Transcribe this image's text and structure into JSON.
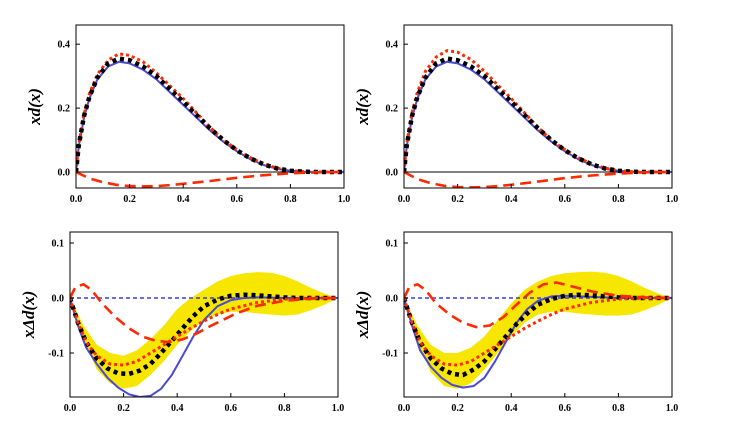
{
  "chart_data": [
    {
      "type": "line",
      "ylabel": "xd(x)",
      "xlim": [
        0,
        1
      ],
      "ylim": [
        -0.05,
        0.46
      ],
      "xticks": [
        "0.0",
        "0.2",
        "0.4",
        "0.6",
        "0.8",
        "1.0"
      ],
      "yticks": [
        "0.0",
        "0.2",
        "0.4"
      ],
      "zero_line": "solid",
      "series": [
        {
          "style": "solid",
          "color": "#4a4ad4",
          "x": [
            0.0,
            0.01,
            0.03,
            0.05,
            0.08,
            0.12,
            0.16,
            0.2,
            0.25,
            0.3,
            0.35,
            0.4,
            0.45,
            0.5,
            0.55,
            0.6,
            0.65,
            0.7,
            0.75,
            0.8,
            0.85,
            0.9,
            0.95,
            1.0
          ],
          "y": [
            0.0,
            0.08,
            0.17,
            0.23,
            0.29,
            0.33,
            0.345,
            0.34,
            0.32,
            0.29,
            0.25,
            0.21,
            0.17,
            0.13,
            0.095,
            0.065,
            0.04,
            0.022,
            0.01,
            0.004,
            0.001,
            0.0,
            0.0,
            0.0
          ]
        },
        {
          "style": "dotted",
          "color": "#ff2a00",
          "x": [
            0.0,
            0.01,
            0.03,
            0.05,
            0.08,
            0.12,
            0.16,
            0.2,
            0.25,
            0.3,
            0.35,
            0.4,
            0.45,
            0.5,
            0.55,
            0.6,
            0.65,
            0.7,
            0.75,
            0.8,
            0.85,
            0.9,
            0.95,
            1.0
          ],
          "y": [
            0.0,
            0.085,
            0.18,
            0.245,
            0.305,
            0.35,
            0.37,
            0.365,
            0.345,
            0.31,
            0.27,
            0.23,
            0.185,
            0.14,
            0.1,
            0.07,
            0.045,
            0.025,
            0.012,
            0.005,
            0.001,
            0.0,
            0.0,
            0.0
          ]
        },
        {
          "style": "squares",
          "color": "#000000",
          "x": [
            0.0,
            0.01,
            0.03,
            0.05,
            0.08,
            0.12,
            0.16,
            0.2,
            0.25,
            0.3,
            0.35,
            0.4,
            0.45,
            0.5,
            0.55,
            0.6,
            0.65,
            0.7,
            0.75,
            0.8,
            0.85,
            0.9,
            0.95,
            1.0
          ],
          "y": [
            0.0,
            0.082,
            0.175,
            0.235,
            0.295,
            0.34,
            0.355,
            0.35,
            0.33,
            0.3,
            0.26,
            0.22,
            0.178,
            0.137,
            0.1,
            0.068,
            0.043,
            0.024,
            0.011,
            0.004,
            0.001,
            0.0,
            0.0,
            0.0
          ]
        },
        {
          "style": "dashed",
          "color": "#ff2a00",
          "x": [
            0.0,
            0.05,
            0.1,
            0.15,
            0.2,
            0.25,
            0.3,
            0.35,
            0.4,
            0.5,
            0.6,
            0.7,
            0.8,
            0.9,
            1.0
          ],
          "y": [
            0.0,
            -0.02,
            -0.032,
            -0.04,
            -0.044,
            -0.045,
            -0.044,
            -0.041,
            -0.037,
            -0.028,
            -0.018,
            -0.01,
            -0.004,
            -0.001,
            0.0
          ]
        }
      ]
    },
    {
      "type": "line",
      "ylabel": "xd(x)",
      "xlim": [
        0,
        1
      ],
      "ylim": [
        -0.05,
        0.46
      ],
      "xticks": [
        "0.0",
        "0.2",
        "0.4",
        "0.6",
        "0.8",
        "1.0"
      ],
      "yticks": [
        "0.0",
        "0.2",
        "0.4"
      ],
      "zero_line": "solid",
      "series": [
        {
          "style": "solid",
          "color": "#4a4ad4",
          "x": [
            0.0,
            0.01,
            0.03,
            0.05,
            0.08,
            0.12,
            0.16,
            0.2,
            0.25,
            0.3,
            0.35,
            0.4,
            0.45,
            0.5,
            0.55,
            0.6,
            0.65,
            0.7,
            0.75,
            0.8,
            0.85,
            0.9,
            0.95,
            1.0
          ],
          "y": [
            0.0,
            0.08,
            0.17,
            0.23,
            0.29,
            0.33,
            0.345,
            0.34,
            0.32,
            0.29,
            0.25,
            0.21,
            0.17,
            0.13,
            0.095,
            0.065,
            0.04,
            0.022,
            0.01,
            0.004,
            0.001,
            0.0,
            0.0,
            0.0
          ]
        },
        {
          "style": "dotted",
          "color": "#ff2a00",
          "x": [
            0.0,
            0.01,
            0.03,
            0.05,
            0.08,
            0.12,
            0.16,
            0.2,
            0.25,
            0.3,
            0.35,
            0.4,
            0.45,
            0.5,
            0.55,
            0.6,
            0.65,
            0.7,
            0.75,
            0.8,
            0.85,
            0.9,
            0.95,
            1.0
          ],
          "y": [
            0.0,
            0.088,
            0.185,
            0.25,
            0.315,
            0.36,
            0.38,
            0.375,
            0.352,
            0.315,
            0.272,
            0.23,
            0.185,
            0.14,
            0.1,
            0.07,
            0.045,
            0.025,
            0.012,
            0.005,
            0.001,
            0.0,
            0.0,
            0.0
          ]
        },
        {
          "style": "squares",
          "color": "#000000",
          "x": [
            0.0,
            0.01,
            0.03,
            0.05,
            0.08,
            0.12,
            0.16,
            0.2,
            0.25,
            0.3,
            0.35,
            0.4,
            0.45,
            0.5,
            0.55,
            0.6,
            0.65,
            0.7,
            0.75,
            0.8,
            0.85,
            0.9,
            0.95,
            1.0
          ],
          "y": [
            0.0,
            0.082,
            0.175,
            0.235,
            0.295,
            0.34,
            0.355,
            0.35,
            0.33,
            0.3,
            0.26,
            0.22,
            0.178,
            0.137,
            0.1,
            0.068,
            0.043,
            0.024,
            0.011,
            0.004,
            0.001,
            0.0,
            0.0,
            0.0
          ]
        },
        {
          "style": "dashed",
          "color": "#ff2a00",
          "x": [
            0.0,
            0.05,
            0.1,
            0.15,
            0.2,
            0.25,
            0.3,
            0.35,
            0.4,
            0.5,
            0.6,
            0.7,
            0.8,
            0.9,
            1.0
          ],
          "y": [
            0.0,
            -0.022,
            -0.035,
            -0.043,
            -0.047,
            -0.048,
            -0.047,
            -0.044,
            -0.04,
            -0.03,
            -0.019,
            -0.011,
            -0.005,
            -0.001,
            0.0
          ]
        }
      ]
    },
    {
      "type": "line",
      "ylabel": "xΔd(x)",
      "xlim": [
        0,
        1
      ],
      "ylim": [
        -0.18,
        0.12
      ],
      "xticks": [
        "0.0",
        "0.2",
        "0.4",
        "0.6",
        "0.8",
        "1.0"
      ],
      "yticks": [
        "0.1",
        "0.0",
        "-0.1"
      ],
      "zero_line": "dashed",
      "band": {
        "color": "#f7e600",
        "x": [
          0.0,
          0.05,
          0.1,
          0.15,
          0.2,
          0.25,
          0.3,
          0.35,
          0.4,
          0.45,
          0.5,
          0.55,
          0.6,
          0.65,
          0.7,
          0.75,
          0.8,
          0.85,
          0.9,
          0.95,
          1.0
        ],
        "lower": [
          -0.005,
          -0.075,
          -0.13,
          -0.155,
          -0.165,
          -0.16,
          -0.14,
          -0.115,
          -0.085,
          -0.06,
          -0.04,
          -0.03,
          -0.025,
          -0.025,
          -0.028,
          -0.03,
          -0.032,
          -0.03,
          -0.022,
          -0.012,
          0.0
        ],
        "upper": [
          0.0,
          -0.05,
          -0.085,
          -0.1,
          -0.105,
          -0.095,
          -0.075,
          -0.05,
          -0.02,
          0.0,
          0.015,
          0.03,
          0.04,
          0.045,
          0.047,
          0.046,
          0.04,
          0.03,
          0.018,
          0.008,
          0.0
        ]
      },
      "series": [
        {
          "style": "solid",
          "color": "#4a4ad4",
          "x": [
            0.0,
            0.03,
            0.06,
            0.1,
            0.14,
            0.18,
            0.22,
            0.26,
            0.3,
            0.34,
            0.38,
            0.42,
            0.46,
            0.5,
            0.55,
            0.6,
            0.65,
            0.7,
            0.8,
            0.9,
            1.0
          ],
          "y": [
            0.0,
            -0.05,
            -0.09,
            -0.12,
            -0.145,
            -0.163,
            -0.175,
            -0.18,
            -0.178,
            -0.165,
            -0.14,
            -0.105,
            -0.07,
            -0.04,
            -0.015,
            -0.004,
            0.0,
            0.001,
            0.0,
            0.0,
            0.0
          ]
        },
        {
          "style": "squares",
          "color": "#000000",
          "x": [
            0.0,
            0.03,
            0.06,
            0.1,
            0.14,
            0.18,
            0.22,
            0.26,
            0.3,
            0.34,
            0.38,
            0.42,
            0.46,
            0.5,
            0.55,
            0.6,
            0.65,
            0.7,
            0.75,
            0.8,
            0.85,
            0.9,
            0.95,
            1.0
          ],
          "y": [
            0.0,
            -0.045,
            -0.08,
            -0.11,
            -0.128,
            -0.137,
            -0.138,
            -0.132,
            -0.12,
            -0.1,
            -0.078,
            -0.055,
            -0.033,
            -0.015,
            -0.003,
            0.004,
            0.006,
            0.005,
            0.003,
            0.001,
            0.0,
            0.0,
            0.0,
            0.0
          ]
        },
        {
          "style": "dotted",
          "color": "#ff2a00",
          "x": [
            0.0,
            0.03,
            0.06,
            0.1,
            0.15,
            0.2,
            0.25,
            0.3,
            0.35,
            0.4,
            0.45,
            0.5,
            0.55,
            0.6,
            0.7,
            0.8,
            0.9,
            1.0
          ],
          "y": [
            0.0,
            -0.045,
            -0.08,
            -0.105,
            -0.12,
            -0.122,
            -0.115,
            -0.1,
            -0.085,
            -0.07,
            -0.055,
            -0.042,
            -0.03,
            -0.02,
            -0.008,
            -0.002,
            0.0,
            0.0
          ]
        },
        {
          "style": "dashed",
          "color": "#ff2a00",
          "x": [
            0.0,
            0.02,
            0.05,
            0.08,
            0.12,
            0.17,
            0.22,
            0.27,
            0.32,
            0.37,
            0.42,
            0.47,
            0.52,
            0.57,
            0.62,
            0.7,
            0.8,
            0.9,
            1.0
          ],
          "y": [
            0.0,
            0.02,
            0.025,
            0.015,
            -0.01,
            -0.035,
            -0.055,
            -0.07,
            -0.078,
            -0.08,
            -0.075,
            -0.065,
            -0.052,
            -0.04,
            -0.028,
            -0.014,
            -0.005,
            -0.001,
            0.0
          ]
        }
      ]
    },
    {
      "type": "line",
      "ylabel": "xΔd(x)",
      "xlim": [
        0,
        1
      ],
      "ylim": [
        -0.18,
        0.12
      ],
      "xticks": [
        "0.0",
        "0.2",
        "0.4",
        "0.6",
        "0.8",
        "1.0"
      ],
      "yticks": [
        "0.1",
        "0.0",
        "-0.1"
      ],
      "zero_line": "dashed",
      "band": {
        "color": "#f7e600",
        "x": [
          0.0,
          0.05,
          0.1,
          0.15,
          0.2,
          0.25,
          0.3,
          0.35,
          0.4,
          0.45,
          0.5,
          0.55,
          0.6,
          0.65,
          0.7,
          0.75,
          0.8,
          0.85,
          0.9,
          0.95,
          1.0
        ],
        "lower": [
          -0.005,
          -0.08,
          -0.135,
          -0.16,
          -0.165,
          -0.155,
          -0.13,
          -0.1,
          -0.07,
          -0.045,
          -0.03,
          -0.025,
          -0.025,
          -0.028,
          -0.03,
          -0.032,
          -0.032,
          -0.03,
          -0.022,
          -0.012,
          0.0
        ],
        "upper": [
          0.0,
          -0.05,
          -0.085,
          -0.1,
          -0.1,
          -0.09,
          -0.07,
          -0.04,
          -0.01,
          0.015,
          0.03,
          0.04,
          0.045,
          0.047,
          0.048,
          0.046,
          0.04,
          0.03,
          0.018,
          0.008,
          0.0
        ]
      },
      "series": [
        {
          "style": "solid",
          "color": "#4a4ad4",
          "x": [
            0.0,
            0.03,
            0.06,
            0.1,
            0.14,
            0.18,
            0.22,
            0.26,
            0.3,
            0.34,
            0.38,
            0.42,
            0.46,
            0.5,
            0.55,
            0.6,
            0.65,
            0.7,
            0.8,
            0.9,
            1.0
          ],
          "y": [
            0.0,
            -0.05,
            -0.095,
            -0.125,
            -0.145,
            -0.158,
            -0.163,
            -0.16,
            -0.145,
            -0.115,
            -0.08,
            -0.045,
            -0.02,
            -0.005,
            0.003,
            0.004,
            0.003,
            0.002,
            0.0,
            0.0,
            0.0
          ]
        },
        {
          "style": "squares",
          "color": "#000000",
          "x": [
            0.0,
            0.03,
            0.06,
            0.1,
            0.14,
            0.18,
            0.22,
            0.26,
            0.3,
            0.34,
            0.38,
            0.42,
            0.46,
            0.5,
            0.55,
            0.6,
            0.65,
            0.7,
            0.75,
            0.8,
            0.85,
            0.9,
            0.95,
            1.0
          ],
          "y": [
            0.0,
            -0.045,
            -0.08,
            -0.11,
            -0.128,
            -0.138,
            -0.14,
            -0.13,
            -0.115,
            -0.093,
            -0.07,
            -0.047,
            -0.028,
            -0.012,
            -0.002,
            0.004,
            0.006,
            0.005,
            0.003,
            0.001,
            0.0,
            0.0,
            0.0,
            0.0
          ]
        },
        {
          "style": "dotted",
          "color": "#ff2a00",
          "x": [
            0.0,
            0.03,
            0.06,
            0.1,
            0.15,
            0.2,
            0.25,
            0.3,
            0.35,
            0.4,
            0.45,
            0.5,
            0.55,
            0.6,
            0.7,
            0.8,
            0.9,
            1.0
          ],
          "y": [
            0.0,
            -0.045,
            -0.08,
            -0.105,
            -0.12,
            -0.122,
            -0.115,
            -0.1,
            -0.085,
            -0.07,
            -0.055,
            -0.042,
            -0.03,
            -0.02,
            -0.008,
            -0.002,
            0.0,
            0.0
          ]
        },
        {
          "style": "dashed",
          "color": "#ff2a00",
          "x": [
            0.0,
            0.02,
            0.05,
            0.08,
            0.12,
            0.17,
            0.22,
            0.27,
            0.32,
            0.37,
            0.42,
            0.47,
            0.52,
            0.57,
            0.62,
            0.7,
            0.8,
            0.9,
            1.0
          ],
          "y": [
            0.0,
            0.02,
            0.025,
            0.015,
            -0.01,
            -0.03,
            -0.045,
            -0.053,
            -0.05,
            -0.035,
            -0.012,
            0.01,
            0.025,
            0.028,
            0.022,
            0.012,
            0.004,
            0.001,
            0.0
          ]
        }
      ]
    }
  ]
}
